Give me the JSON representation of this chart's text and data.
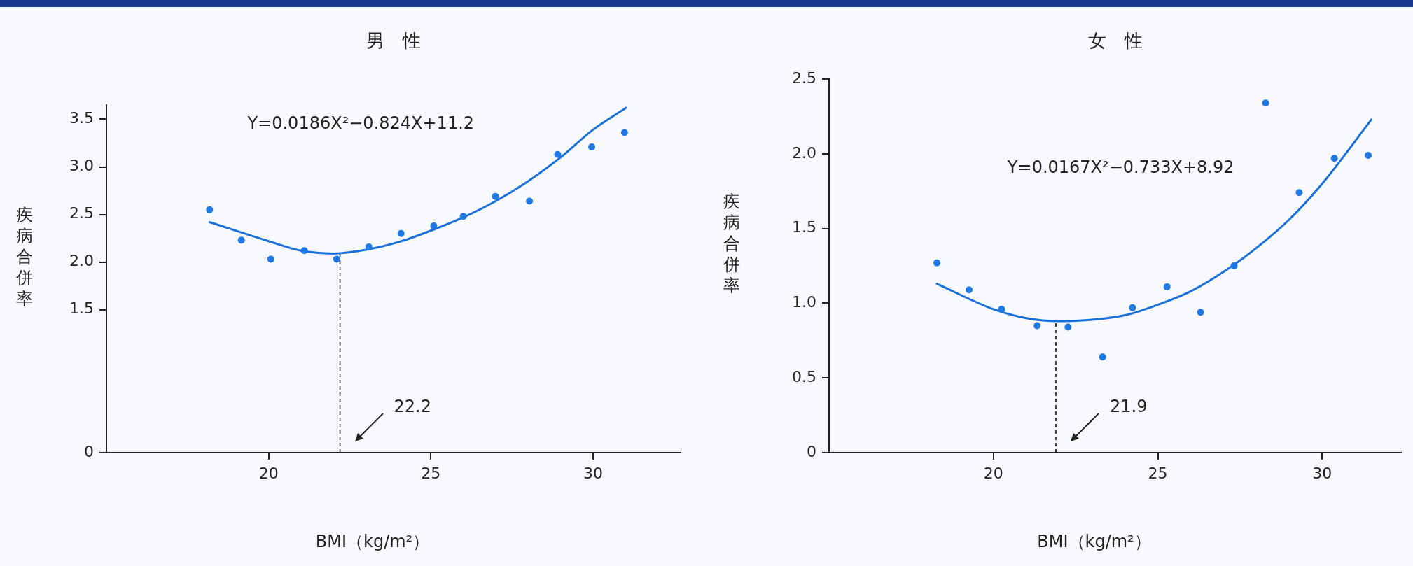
{
  "chart_data": [
    {
      "type": "scatter",
      "title": "男　性",
      "xlabel": "BMI（kg/m²）",
      "ylabel": "疾病合併率",
      "grid": false,
      "legend": false,
      "xlim": [
        15,
        32.7
      ],
      "xticks": [
        20,
        25,
        30
      ],
      "ylim": [
        0,
        3.65
      ],
      "yticks": [
        0,
        1.5,
        {
          "value": 2,
          "label": "2.0"
        },
        2.5,
        {
          "value": 3,
          "label": "3.0"
        },
        3.5
      ],
      "series": [
        {
          "type": "scatter",
          "marker": "circle",
          "color": "#1f78e3",
          "x": [
            18.18,
            19.16,
            20.07,
            21.1,
            22.1,
            23.09,
            24.08,
            25.09,
            26.0,
            26.99,
            28.04,
            28.91,
            29.96,
            30.97
          ],
          "values": [
            2.55,
            2.23,
            2.03,
            2.12,
            2.03,
            2.16,
            2.3,
            2.38,
            2.48,
            2.69,
            2.64,
            3.13,
            3.21,
            3.36
          ]
        },
        {
          "type": "line",
          "marker": "none",
          "color": "#1a6fdb",
          "x": [
            18.18,
            20,
            21,
            22,
            23,
            24,
            25,
            26,
            27,
            28,
            29,
            30,
            31.02
          ],
          "values": [
            2.42,
            2.22,
            2.12,
            2.09,
            2.13,
            2.21,
            2.33,
            2.47,
            2.64,
            2.85,
            3.1,
            3.39,
            3.62
          ]
        }
      ],
      "ref_lines": [
        {
          "axis": "x",
          "value": 22.2,
          "label": "22.2",
          "line_style": "dashed",
          "color": "#000000"
        }
      ],
      "annotations": [
        "Y=0.0186X²−0.824X+11.2"
      ]
    },
    {
      "type": "scatter",
      "title": "女　性",
      "xlabel": "BMI（kg/m²）",
      "ylabel": "疾病合併率",
      "grid": false,
      "legend": false,
      "xlim": [
        15,
        32.4
      ],
      "xticks": [
        20,
        25,
        30
      ],
      "ylim": [
        0,
        2.5
      ],
      "yticks": [
        0,
        0.5,
        {
          "value": 1,
          "label": "1.0"
        },
        1.5,
        {
          "value": 2,
          "label": "2.0"
        },
        2.5
      ],
      "series": [
        {
          "type": "scatter",
          "marker": "circle",
          "color": "#1f78e3",
          "x": [
            18.28,
            19.26,
            20.25,
            21.33,
            22.27,
            23.32,
            24.23,
            25.28,
            26.3,
            27.32,
            28.28,
            29.3,
            30.37,
            31.4
          ],
          "values": [
            1.27,
            1.09,
            0.96,
            0.85,
            0.84,
            0.64,
            0.97,
            1.11,
            0.94,
            1.25,
            2.34,
            1.74,
            1.97,
            1.99
          ]
        },
        {
          "type": "line",
          "marker": "none",
          "color": "#1a6fdb",
          "x": [
            18.28,
            20,
            21,
            22,
            23,
            24,
            25,
            26,
            27,
            28,
            29,
            30,
            31.5
          ],
          "values": [
            1.13,
            0.96,
            0.9,
            0.88,
            0.89,
            0.92,
            0.99,
            1.08,
            1.21,
            1.37,
            1.56,
            1.8,
            2.23
          ]
        }
      ],
      "ref_lines": [
        {
          "axis": "x",
          "value": 21.9,
          "label": "21.9",
          "line_style": "dashed",
          "color": "#000000"
        }
      ],
      "annotations": [
        "Y=0.0167X²−0.733X+8.92"
      ]
    }
  ]
}
